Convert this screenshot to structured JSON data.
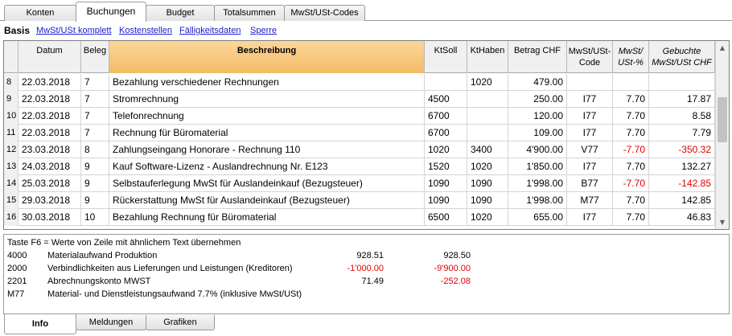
{
  "top_tabs": [
    "Konten",
    "Buchungen",
    "Budget",
    "Totalsummen",
    "MwSt/USt-Codes"
  ],
  "active_top_tab": "Buchungen",
  "views": {
    "current": "Basis",
    "links": [
      "MwSt/USt komplett",
      "Kostenstellen",
      "Fälligkeitsdaten",
      "Sperre"
    ]
  },
  "columns": {
    "datum": "Datum",
    "beleg": "Beleg",
    "beschreibung": "Beschreibung",
    "ktsoll": "KtSoll",
    "kthaben": "KtHaben",
    "betrag": "Betrag CHF",
    "code_1": "MwSt/USt-",
    "code_2": "Code",
    "pct_1": "MwSt/",
    "pct_2": "USt-%",
    "gebucht_1": "Gebuchte",
    "gebucht_2": "MwSt/USt CHF"
  },
  "rows": [
    {
      "nr": "8",
      "datum": "22.03.2018",
      "beleg": "7",
      "beschreibung": "Bezahlung verschiedener Rechnungen",
      "ktsoll": "",
      "kthaben": "1020",
      "betrag": "479.00",
      "code": "",
      "pct": "",
      "gebucht": ""
    },
    {
      "nr": "9",
      "datum": "22.03.2018",
      "beleg": "7",
      "beschreibung": "Stromrechnung",
      "ktsoll": "4500",
      "kthaben": "",
      "betrag": "250.00",
      "code": "I77",
      "pct": "7.70",
      "gebucht": "17.87"
    },
    {
      "nr": "10",
      "datum": "22.03.2018",
      "beleg": "7",
      "beschreibung": "Telefonrechnung",
      "ktsoll": "6700",
      "kthaben": "",
      "betrag": "120.00",
      "code": "I77",
      "pct": "7.70",
      "gebucht": "8.58"
    },
    {
      "nr": "11",
      "datum": "22.03.2018",
      "beleg": "7",
      "beschreibung": "Rechnung für Büromaterial",
      "ktsoll": "6700",
      "kthaben": "",
      "betrag": "109.00",
      "code": "I77",
      "pct": "7.70",
      "gebucht": "7.79"
    },
    {
      "nr": "12",
      "datum": "23.03.2018",
      "beleg": "8",
      "beschreibung": "Zahlungseingang Honorare - Rechnung 110",
      "ktsoll": "1020",
      "kthaben": "3400",
      "betrag": "4'900.00",
      "code": "V77",
      "pct": "-7.70",
      "gebucht": "-350.32"
    },
    {
      "nr": "13",
      "datum": "24.03.2018",
      "beleg": "9",
      "beschreibung": "Kauf Software-Lizenz - Auslandrechnung Nr. E123",
      "ktsoll": "1520",
      "kthaben": "1020",
      "betrag": "1'850.00",
      "code": "I77",
      "pct": "7.70",
      "gebucht": "132.27"
    },
    {
      "nr": "14",
      "datum": "25.03.2018",
      "beleg": "9",
      "beschreibung": "Selbstauferlegung MwSt für Auslandeinkauf (Bezugsteuer)",
      "ktsoll": "1090",
      "kthaben": "1090",
      "betrag": "1'998.00",
      "code": "B77",
      "pct": "-7.70",
      "gebucht": "-142.85"
    },
    {
      "nr": "15",
      "datum": "29.03.2018",
      "beleg": "9",
      "beschreibung": "Rückerstattung MwSt für Auslandeinkauf (Bezugsteuer)",
      "ktsoll": "1090",
      "kthaben": "1090",
      "betrag": "1'998.00",
      "code": "M77",
      "pct": "7.70",
      "gebucht": "142.85"
    },
    {
      "nr": "16",
      "datum": "30.03.2018",
      "beleg": "10",
      "beschreibung": "Bezahlung Rechnung für Büromaterial",
      "ktsoll": "6500",
      "kthaben": "1020",
      "betrag": "655.00",
      "code": "I77",
      "pct": "7.70",
      "gebucht": "46.83"
    }
  ],
  "info": {
    "hint": "Taste F6 = Werte von Zeile mit ähnlichem Text übernehmen",
    "entries": [
      {
        "account": "4000",
        "text": "Materialaufwand Produktion",
        "v1": "928.51",
        "v2": "928.50"
      },
      {
        "account": "2000",
        "text": "Verbindlichkeiten aus Lieferungen und Leistungen (Kreditoren)",
        "v1": "-1'000.00",
        "v2": "-9'900.00"
      },
      {
        "account": "2201",
        "text": "Abrechnungskonto MWST",
        "v1": "71.49",
        "v2": "-252.08"
      },
      {
        "account": "M77",
        "text": "Material- und Dienstleistungsaufwand 7.7% (inklusive MwSt/USt)",
        "v1": "",
        "v2": ""
      }
    ]
  },
  "bottom_tabs": [
    "Info",
    "Meldungen",
    "Grafiken"
  ],
  "active_bottom_tab": "Info",
  "colors": {
    "negative": "#e00000",
    "link": "#1b1bcc",
    "description_header": "#f3bb66"
  }
}
